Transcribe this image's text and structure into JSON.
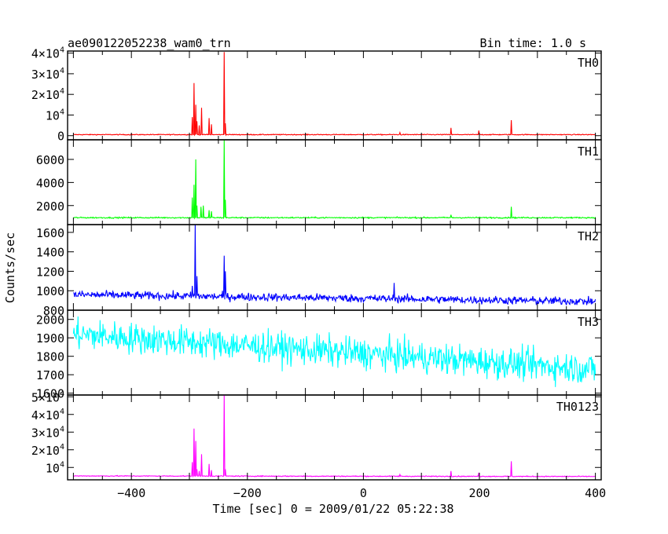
{
  "header": {
    "title": "ae090122052238_wam0_trn",
    "bin_time": "Bin time: 1.0 s"
  },
  "chart_data": {
    "type": "line",
    "xlabel": "Time [sec] 0 = 2009/01/22 05:22:38",
    "ylabel": "Counts/sec",
    "xlim": [
      -510,
      410
    ],
    "x_ticks": [
      -400,
      -200,
      0,
      200,
      400
    ],
    "x_tick_labels": [
      "−400",
      "−200",
      "0",
      "200",
      "400"
    ],
    "x_range": [
      -500,
      400
    ],
    "panels": [
      {
        "name": "TH0",
        "color": "#ff0000",
        "ylim": [
          -2000,
          41000
        ],
        "yticks": [
          {
            "v": 0,
            "l": "0"
          },
          {
            "v": 10000,
            "l": "10",
            "e": "4"
          },
          {
            "v": 20000,
            "l": "2×10",
            "e": "4"
          },
          {
            "v": 30000,
            "l": "3×10",
            "e": "4"
          },
          {
            "v": 40000,
            "l": "4×10",
            "e": "4"
          }
        ],
        "baseline": 500,
        "noise": 150,
        "trend": 0,
        "peaks": [
          [
            -295,
            9000
          ],
          [
            -292,
            25500
          ],
          [
            -289,
            15000
          ],
          [
            -287,
            7000
          ],
          [
            -283,
            5000
          ],
          [
            -279,
            13500
          ],
          [
            -266,
            8500
          ],
          [
            -262,
            5500
          ],
          [
            -240,
            40500
          ],
          [
            -238,
            6000
          ],
          [
            63,
            1500
          ],
          [
            151,
            3800
          ],
          [
            199,
            2500
          ],
          [
            255,
            7500
          ]
        ]
      },
      {
        "name": "TH1",
        "color": "#00ff00",
        "ylim": [
          350,
          7700
        ],
        "yticks": [
          {
            "v": 2000,
            "l": "2000"
          },
          {
            "v": 4000,
            "l": "4000"
          },
          {
            "v": 6000,
            "l": "6000"
          }
        ],
        "baseline": 950,
        "noise": 40,
        "trend": 0,
        "peaks": [
          [
            -295,
            2700
          ],
          [
            -292,
            3800
          ],
          [
            -289,
            6000
          ],
          [
            -287,
            2000
          ],
          [
            -280,
            1900
          ],
          [
            -276,
            2000
          ],
          [
            -266,
            1600
          ],
          [
            -262,
            1500
          ],
          [
            -240,
            7700
          ],
          [
            -238,
            2500
          ],
          [
            151,
            1200
          ],
          [
            255,
            1900
          ]
        ]
      },
      {
        "name": "TH2",
        "color": "#0000ff",
        "ylim": [
          800,
          1680
        ],
        "yticks": [
          {
            "v": 800,
            "l": "800"
          },
          {
            "v": 1000,
            "l": "1000"
          },
          {
            "v": 1200,
            "l": "1200"
          },
          {
            "v": 1400,
            "l": "1400"
          },
          {
            "v": 1600,
            "l": "1600"
          }
        ],
        "baseline": 960,
        "noise": 30,
        "trend": -70,
        "peaks": [
          [
            -295,
            1050
          ],
          [
            -290,
            1680
          ],
          [
            -287,
            1150
          ],
          [
            -240,
            1360
          ],
          [
            -238,
            1200
          ],
          [
            53,
            1080
          ]
        ]
      },
      {
        "name": "TH3",
        "color": "#00ffff",
        "ylim": [
          1590,
          2050
        ],
        "yticks": [
          {
            "v": 1600,
            "l": "1600"
          },
          {
            "v": 1700,
            "l": "1700"
          },
          {
            "v": 1800,
            "l": "1800"
          },
          {
            "v": 1900,
            "l": "1900"
          },
          {
            "v": 2000,
            "l": "2000"
          }
        ],
        "baseline": 1920,
        "noise": 60,
        "trend": -190,
        "peaks": []
      },
      {
        "name": "TH0123",
        "color": "#ff00ff",
        "ylim": [
          3000,
          51000
        ],
        "yticks": [
          {
            "v": 10000,
            "l": "10",
            "e": "4"
          },
          {
            "v": 20000,
            "l": "2×10",
            "e": "4"
          },
          {
            "v": 30000,
            "l": "3×10",
            "e": "4"
          },
          {
            "v": 40000,
            "l": "4×10",
            "e": "4"
          },
          {
            "v": 50000,
            "l": "5×10",
            "e": "4"
          }
        ],
        "baseline": 5200,
        "noise": 180,
        "trend": -300,
        "peaks": [
          [
            -295,
            13000
          ],
          [
            -292,
            32000
          ],
          [
            -289,
            25000
          ],
          [
            -287,
            9000
          ],
          [
            -283,
            8000
          ],
          [
            -279,
            17500
          ],
          [
            -266,
            12000
          ],
          [
            -262,
            8500
          ],
          [
            -240,
            51000
          ],
          [
            -238,
            9000
          ],
          [
            63,
            6000
          ],
          [
            151,
            8000
          ],
          [
            199,
            7000
          ],
          [
            255,
            13500
          ]
        ]
      }
    ]
  }
}
